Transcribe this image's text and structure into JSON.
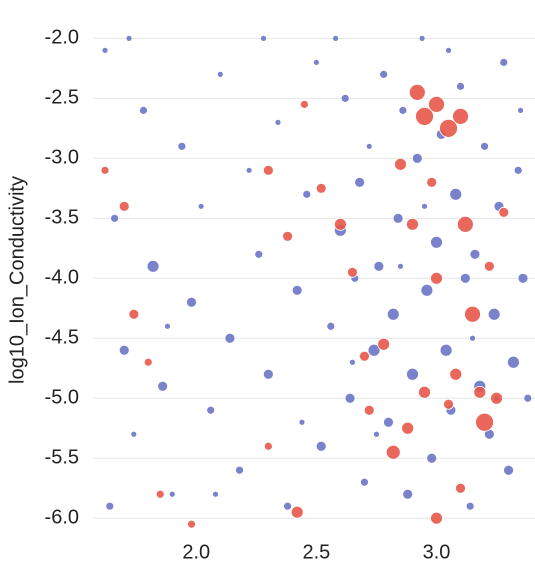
{
  "chart_data": {
    "type": "scatter",
    "y_label": "log10_Ion_Conductivity",
    "xlim": [
      1.57,
      3.41
    ],
    "ylim": [
      -6.14,
      -1.68
    ],
    "xticks": [
      {
        "value": 2,
        "label": "2.0"
      },
      {
        "value": 2.5,
        "label": "2.5"
      },
      {
        "value": 3,
        "label": "3.0"
      }
    ],
    "yticks": [
      {
        "value": -2,
        "label": "-2.0"
      },
      {
        "value": -2.5,
        "label": "-2.5"
      },
      {
        "value": -3,
        "label": "-3.0"
      },
      {
        "value": -3.5,
        "label": "-3.5"
      },
      {
        "value": -4,
        "label": "-4.0"
      },
      {
        "value": -4.5,
        "label": "-4.5"
      },
      {
        "value": -5,
        "label": "-5.0"
      },
      {
        "value": -5.5,
        "label": "-5.5"
      },
      {
        "value": -6,
        "label": "-6.0"
      }
    ],
    "grid": true,
    "series": [
      {
        "color": "#6b74c7",
        "x": [
          1.62,
          1.66,
          1.7,
          1.74,
          1.78,
          1.82,
          1.86,
          1.9,
          1.94,
          1.98,
          2.02,
          2.06,
          2.1,
          2.14,
          2.18,
          2.22,
          2.26,
          2.3,
          2.34,
          2.38,
          2.42,
          2.46,
          2.5,
          2.52,
          2.56,
          2.6,
          2.62,
          2.64,
          2.66,
          2.68,
          2.7,
          2.72,
          2.74,
          2.76,
          2.78,
          2.8,
          2.82,
          2.84,
          2.86,
          2.88,
          2.9,
          2.92,
          2.94,
          2.96,
          2.98,
          3.0,
          3.02,
          3.04,
          3.06,
          3.08,
          3.1,
          3.12,
          3.14,
          3.16,
          3.18,
          3.2,
          3.22,
          3.24,
          3.26,
          3.28,
          3.3,
          3.32,
          3.34,
          3.36,
          3.38,
          1.64,
          1.72,
          1.88,
          2.08,
          2.28,
          2.44,
          2.58,
          2.65,
          2.75,
          2.85,
          2.95,
          3.05,
          3.15,
          3.25,
          3.35
        ],
        "y": [
          -2.1,
          -3.5,
          -4.6,
          -5.3,
          -2.6,
          -3.9,
          -4.9,
          -5.8,
          -2.9,
          -4.2,
          -3.4,
          -5.1,
          -2.3,
          -4.5,
          -5.6,
          -3.1,
          -3.8,
          -4.8,
          -2.7,
          -5.9,
          -4.1,
          -3.3,
          -2.2,
          -5.4,
          -4.4,
          -3.6,
          -2.5,
          -5.0,
          -4.0,
          -3.2,
          -5.7,
          -2.9,
          -4.6,
          -3.9,
          -2.3,
          -5.2,
          -4.3,
          -3.5,
          -2.6,
          -5.8,
          -4.8,
          -3.0,
          -2.0,
          -4.1,
          -5.5,
          -3.7,
          -2.8,
          -4.6,
          -5.1,
          -3.3,
          -2.4,
          -4.0,
          -5.9,
          -3.8,
          -4.9,
          -2.9,
          -5.3,
          -4.3,
          -3.4,
          -2.2,
          -5.6,
          -4.7,
          -3.1,
          -4.0,
          -5.0,
          -5.9,
          -2.0,
          -4.4,
          -5.8,
          -2.0,
          -5.2,
          -2.0,
          -4.7,
          -5.3,
          -3.9,
          -3.4,
          -2.1,
          -4.5,
          -5.0,
          -2.6
        ],
        "sizes": [
          3,
          4,
          5,
          3,
          4,
          6,
          5,
          3,
          4,
          5,
          3,
          4,
          3,
          5,
          4,
          3,
          4,
          5,
          3,
          4,
          5,
          4,
          3,
          5,
          4,
          6,
          4,
          5,
          4,
          5,
          4,
          3,
          6,
          5,
          4,
          5,
          6,
          5,
          4,
          5,
          6,
          5,
          3,
          6,
          5,
          6,
          5,
          6,
          5,
          6,
          4,
          5,
          4,
          5,
          6,
          4,
          5,
          6,
          5,
          4,
          5,
          6,
          4,
          5,
          4,
          4,
          3,
          3,
          3,
          3,
          3,
          3,
          3,
          3,
          3,
          3,
          3,
          3,
          3,
          3
        ]
      },
      {
        "color": "#e8574a",
        "x": [
          1.62,
          1.7,
          1.74,
          1.8,
          1.85,
          1.98,
          2.3,
          2.38,
          2.45,
          2.52,
          2.6,
          2.65,
          2.7,
          2.78,
          2.85,
          2.9,
          2.92,
          2.95,
          3.0,
          3.05,
          3.1,
          3.12,
          3.15,
          3.0,
          2.95,
          2.88,
          3.05,
          3.2,
          3.25,
          3.18,
          2.82,
          3.1,
          3.0,
          2.42,
          2.3,
          3.22,
          3.28,
          2.72,
          3.08,
          2.98
        ],
        "y": [
          -3.1,
          -3.4,
          -4.3,
          -4.7,
          -5.8,
          -6.05,
          -3.1,
          -3.65,
          -2.55,
          -3.25,
          -3.55,
          -3.95,
          -4.65,
          -4.55,
          -3.05,
          -3.55,
          -2.45,
          -2.65,
          -2.55,
          -2.75,
          -2.65,
          -3.55,
          -4.3,
          -4.0,
          -4.95,
          -5.25,
          -5.05,
          -5.2,
          -5.0,
          -4.95,
          -5.45,
          -5.75,
          -6.0,
          -5.95,
          -5.4,
          -3.9,
          -3.45,
          -5.1,
          -4.8,
          -3.2
        ],
        "sizes": [
          4,
          5,
          5,
          4,
          4,
          4,
          5,
          5,
          4,
          5,
          6,
          5,
          5,
          6,
          6,
          6,
          8,
          9,
          8,
          9,
          8,
          8,
          8,
          6,
          6,
          6,
          5,
          9,
          6,
          6,
          7,
          5,
          6,
          6,
          4,
          5,
          5,
          5,
          6,
          5
        ]
      }
    ]
  }
}
